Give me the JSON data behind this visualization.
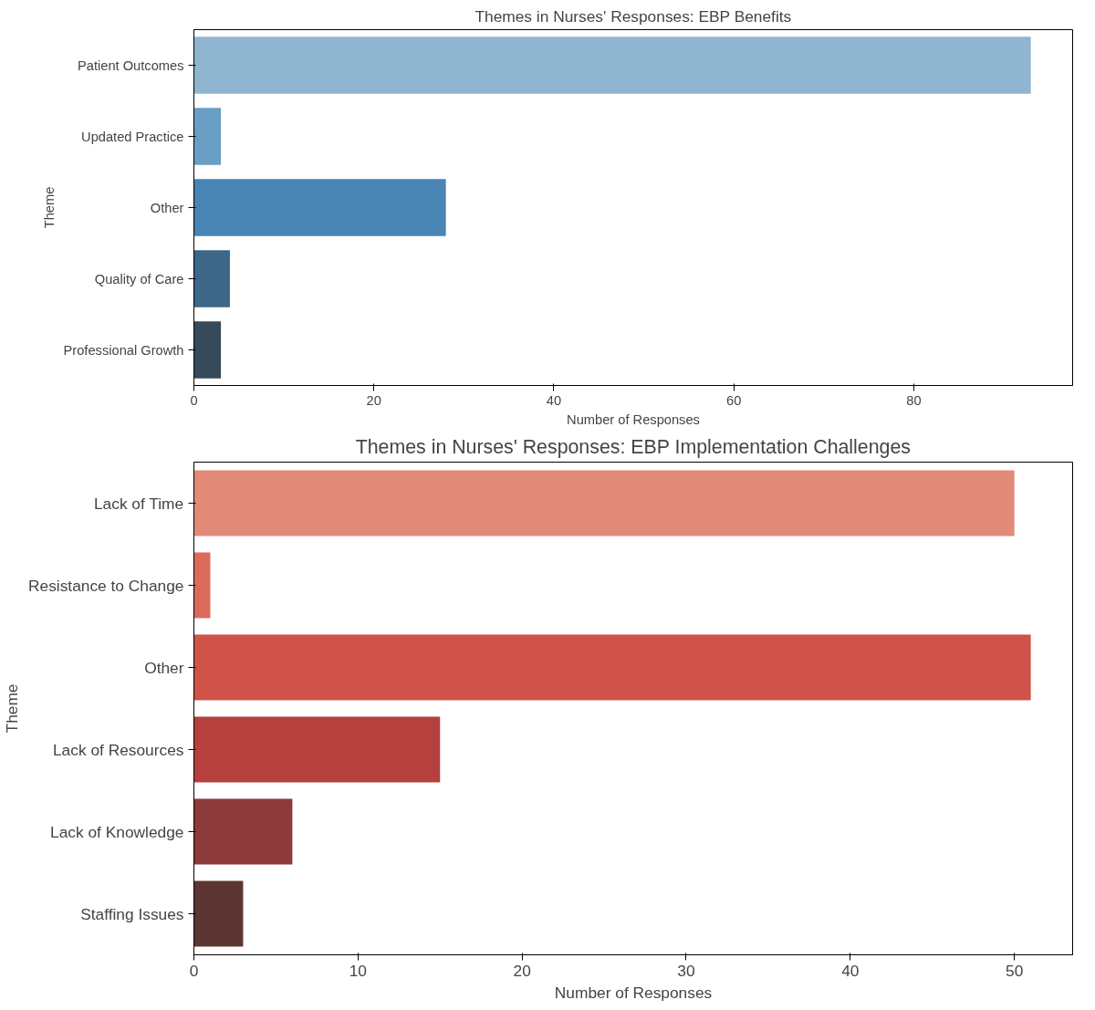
{
  "chart_data": [
    {
      "type": "bar",
      "orientation": "horizontal",
      "title": "Themes in Nurses' Responses: EBP Benefits",
      "xlabel": "Number of Responses",
      "ylabel": "Theme",
      "categories": [
        "Patient Outcomes",
        "Updated Practice",
        "Other",
        "Quality of Care",
        "Professional Growth"
      ],
      "values": [
        93,
        3,
        28,
        4,
        3
      ],
      "colors": [
        "#8fb5d0",
        "#6a9ec4",
        "#4884b4",
        "#3d6687",
        "#364a5a"
      ],
      "xlim": [
        0,
        97.65
      ],
      "xticks": [
        0,
        20,
        40,
        60,
        80
      ],
      "grid": false
    },
    {
      "type": "bar",
      "orientation": "horizontal",
      "title": "Themes in Nurses' Responses: EBP Implementation Challenges",
      "xlabel": "Number of Responses",
      "ylabel": "Theme",
      "categories": [
        "Lack of Time",
        "Resistance to Change",
        "Other",
        "Lack of Resources",
        "Lack of Knowledge",
        "Staffing Issues"
      ],
      "values": [
        50,
        1,
        51,
        15,
        6,
        3
      ],
      "colors": [
        "#e28a78",
        "#dc6b5c",
        "#cf5349",
        "#b5403d",
        "#8c3a3a",
        "#5d3533"
      ],
      "xlim": [
        0,
        53.55
      ],
      "xticks": [
        0,
        10,
        20,
        30,
        40,
        50
      ],
      "grid": false
    }
  ]
}
